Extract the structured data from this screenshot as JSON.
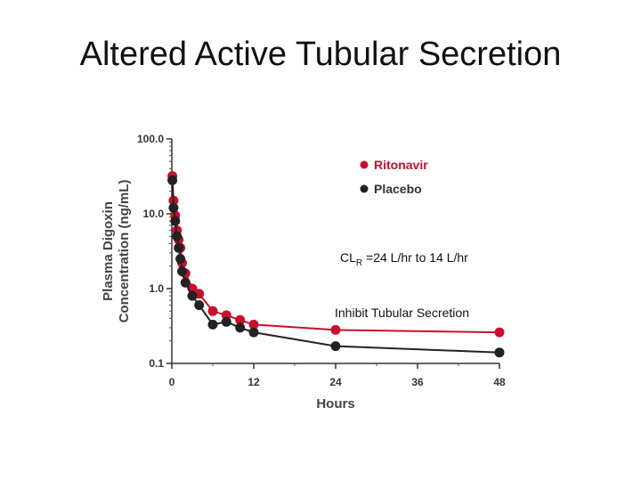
{
  "slide": {
    "title": "Altered Active Tubular Secretion"
  },
  "chart_data": {
    "type": "line",
    "xlabel": "Hours",
    "ylabel_lines": [
      "Plasma Digoxin",
      "Concentration (ng/mL)"
    ],
    "xlim": [
      0,
      48
    ],
    "ylim": [
      0.1,
      100
    ],
    "y_scale": "log",
    "x_ticks": [
      "0",
      "12",
      "24",
      "36",
      "48"
    ],
    "y_ticks": [
      "0.1",
      "1.0",
      "10.0",
      "100.0"
    ],
    "legend_position": "top-right",
    "series": [
      {
        "name": "Ritonavir",
        "color": "#c8102e",
        "x": [
          0.08,
          0.25,
          0.5,
          0.75,
          1,
          1.25,
          1.5,
          2,
          3,
          4,
          6,
          8,
          10,
          12,
          24,
          48
        ],
        "y": [
          32,
          15,
          9.5,
          6,
          4.5,
          3.5,
          2.2,
          1.6,
          1.0,
          0.85,
          0.5,
          0.44,
          0.38,
          0.33,
          0.28,
          0.26
        ]
      },
      {
        "name": "Placebo",
        "color": "#222222",
        "x": [
          0.08,
          0.25,
          0.5,
          0.75,
          1,
          1.25,
          1.5,
          2,
          3,
          4,
          6,
          8,
          10,
          12,
          24,
          48
        ],
        "y": [
          28,
          12,
          8,
          5,
          3.5,
          2.5,
          1.7,
          1.2,
          0.8,
          0.6,
          0.33,
          0.36,
          0.3,
          0.26,
          0.17,
          0.14
        ]
      }
    ],
    "annotations": {
      "clr_main": "CL",
      "clr_sub": "R",
      "clr_rest": " =24 L/hr to 14 L/hr",
      "secretion": "Inhibit Tubular Secretion"
    }
  }
}
